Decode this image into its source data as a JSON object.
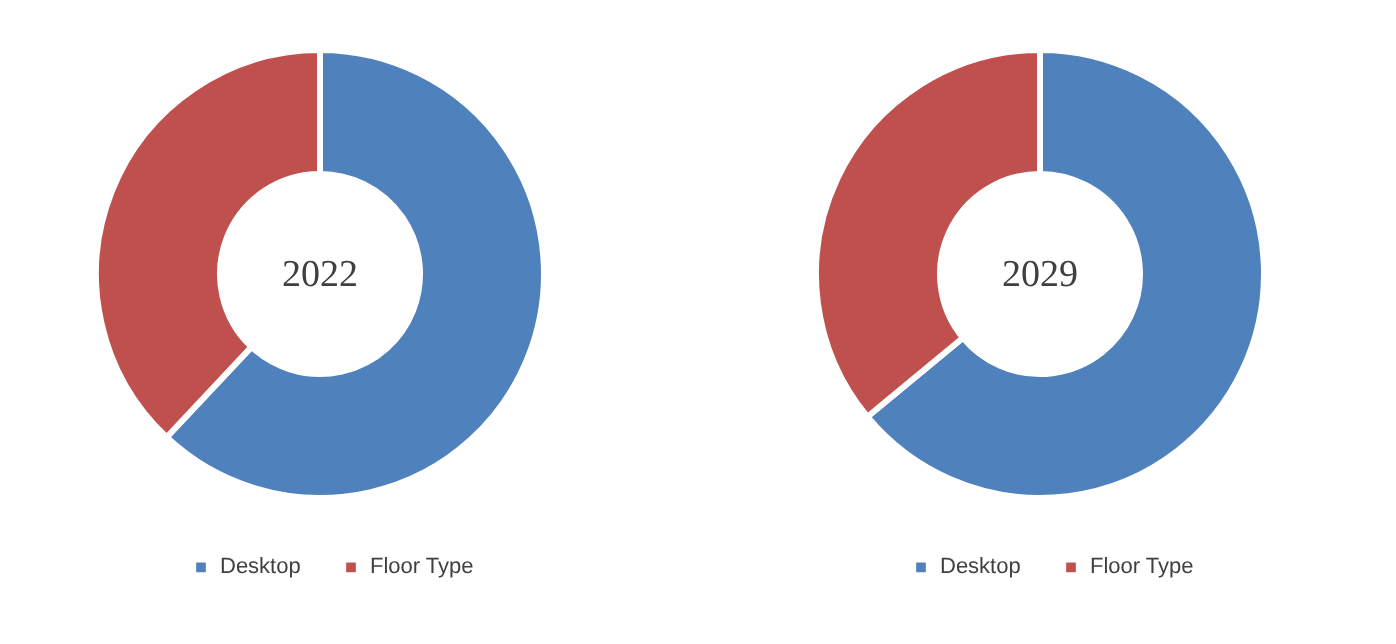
{
  "chart_data": [
    {
      "type": "donut",
      "title": "2022",
      "categories": [
        "Desktop",
        "Floor Type"
      ],
      "values": [
        62,
        38
      ],
      "colors": [
        "#4f81bd",
        "#c0504d"
      ],
      "legend": "bottom"
    },
    {
      "type": "donut",
      "title": "2029",
      "categories": [
        "Desktop",
        "Floor Type"
      ],
      "values": [
        64,
        36
      ],
      "colors": [
        "#4f81bd",
        "#c0504d"
      ],
      "legend": "bottom"
    }
  ]
}
